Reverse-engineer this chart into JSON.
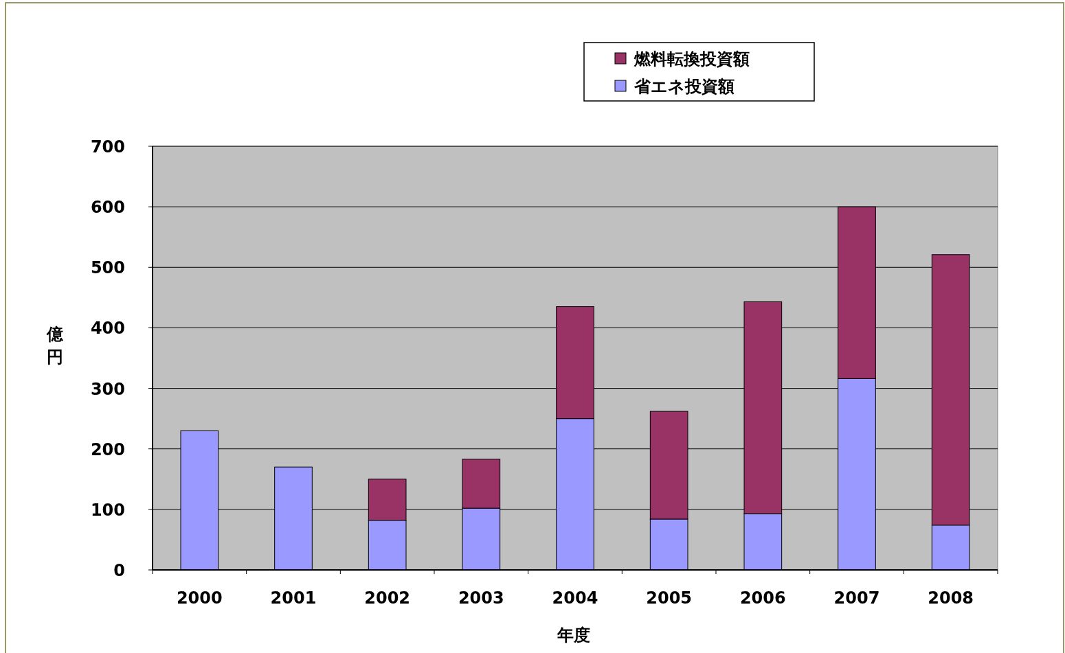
{
  "chart_data": {
    "type": "bar",
    "stacked": true,
    "xlabel": "年度",
    "ylabel": "億円",
    "categories": [
      "2000",
      "2001",
      "2002",
      "2003",
      "2004",
      "2005",
      "2006",
      "2007",
      "2008"
    ],
    "series": [
      {
        "name": "省エネ投資額",
        "color": "#9999ff",
        "values": [
          230,
          170,
          82,
          102,
          250,
          84,
          93,
          316,
          74
        ]
      },
      {
        "name": "燃料転換投資額",
        "color": "#993366",
        "values": [
          null,
          null,
          68,
          81,
          185,
          178,
          350,
          284,
          447
        ]
      }
    ],
    "ylim": [
      0,
      700
    ],
    "yticks": [
      0,
      100,
      200,
      300,
      400,
      500,
      600,
      700
    ],
    "grid": "y",
    "legend": "top"
  }
}
